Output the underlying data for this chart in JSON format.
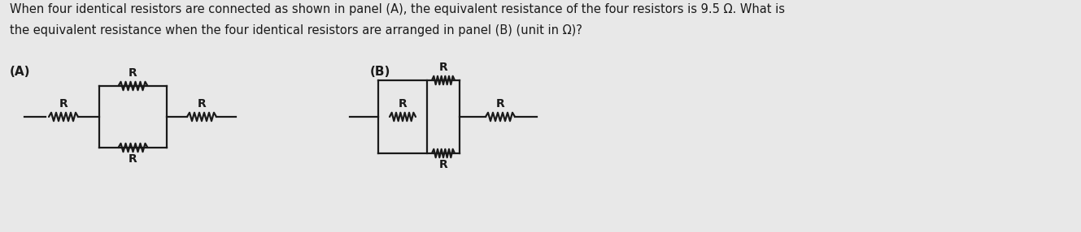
{
  "bg_color": "#e8e8e8",
  "text_color": "#1a1a1a",
  "line_color": "#1a1a1a",
  "title_line1": "When four identical resistors are connected as shown in panel (A), the equivalent resistance of the four resistors is 9.5 Ω. What is",
  "title_line2": "the equivalent resistance when the four identical resistors are arranged in panel (B) (unit in Ω)?",
  "title_fontsize": 10.5,
  "label_A": "(A)",
  "label_B": "(B)",
  "label_fontsize": 11,
  "R_fontsize": 10
}
